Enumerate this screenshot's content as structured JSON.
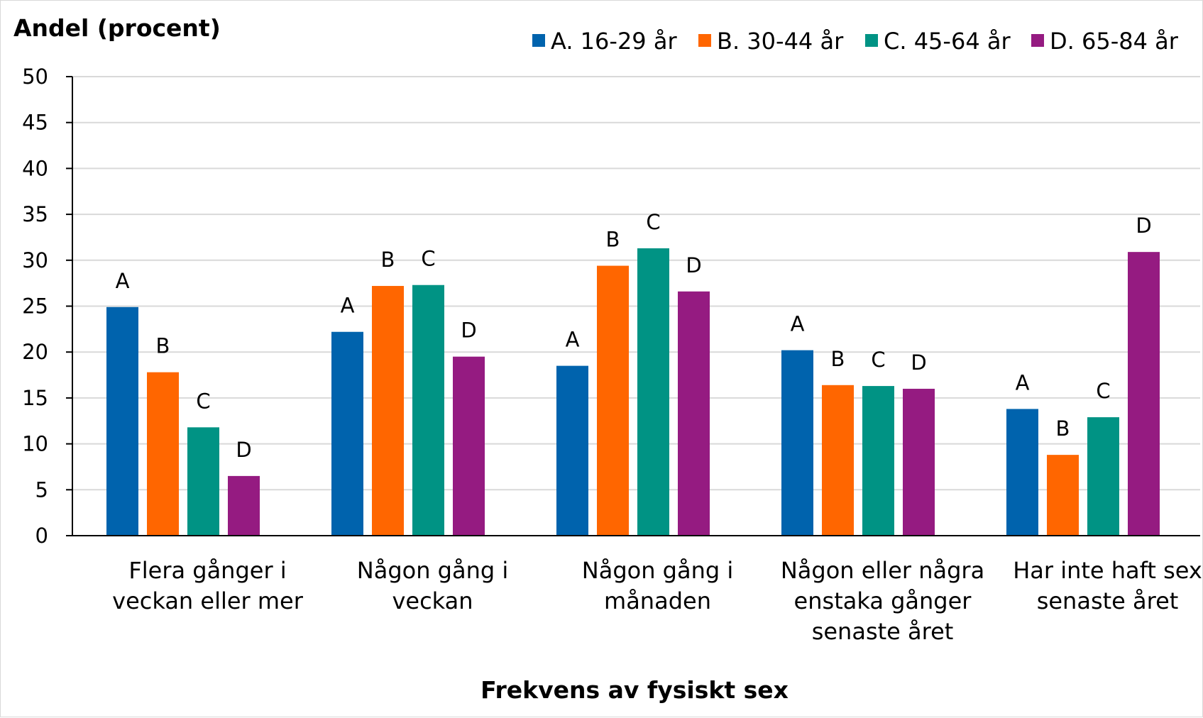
{
  "chart_data": {
    "type": "bar",
    "ylabel": "Andel (procent)",
    "xlabel": "Frekvens av fysiskt sex",
    "ylim": [
      0,
      50
    ],
    "yticks": [
      0,
      5,
      10,
      15,
      20,
      25,
      30,
      35,
      40,
      45,
      50
    ],
    "grid": true,
    "legend_position": "top-right",
    "categories": [
      [
        "Flera gånger i",
        "veckan eller mer"
      ],
      [
        "Någon gång i",
        "veckan"
      ],
      [
        "Någon gång i",
        "månaden"
      ],
      [
        "Någon eller några",
        "enstaka gånger",
        "senaste året"
      ],
      [
        "Har inte haft sex",
        "senaste året"
      ]
    ],
    "series": [
      {
        "name": "A. 16-29 år",
        "bar_label": "A",
        "color": "#0063ad",
        "values": [
          24.9,
          22.2,
          18.5,
          20.2,
          13.8
        ]
      },
      {
        "name": "B. 30-44 år",
        "bar_label": "B",
        "color": "#ff6600",
        "values": [
          17.8,
          27.2,
          29.4,
          16.4,
          8.8
        ]
      },
      {
        "name": "C. 45-64 år",
        "bar_label": "C",
        "color": "#009384",
        "values": [
          11.8,
          27.3,
          31.3,
          16.3,
          12.9
        ]
      },
      {
        "name": "D. 65-84 år",
        "bar_label": "D",
        "color": "#951b81",
        "values": [
          6.5,
          19.5,
          26.6,
          16.0,
          30.9
        ]
      }
    ]
  }
}
